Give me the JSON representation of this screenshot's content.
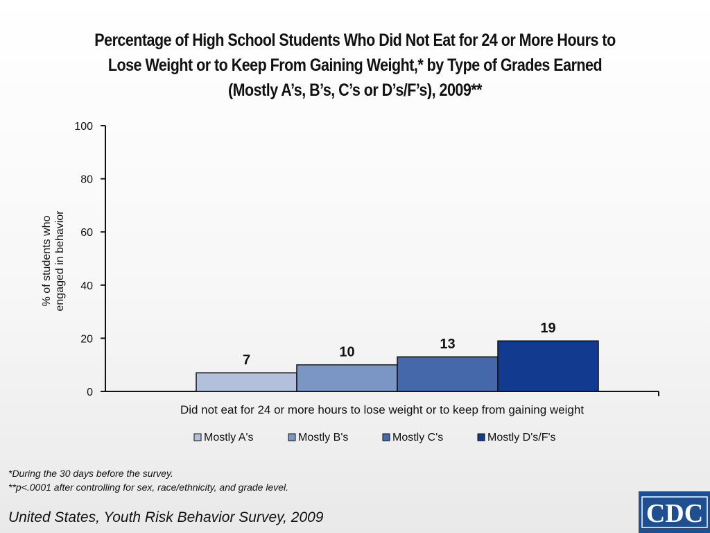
{
  "title_lines": [
    "Percentage of High School Students Who Did Not Eat for 24 or More Hours to",
    "Lose Weight or to Keep From Gaining Weight,* by Type of Grades Earned",
    "(Mostly A’s, B’s, C’s or D’s/F’s), 2009**"
  ],
  "footnotes": {
    "fn1": "*During the 30 days before the survey.",
    "fn2": "**p<.0001 after controlling for sex, race/ethnicity, and grade level."
  },
  "source": "United States, Youth Risk Behavior Survey, 2009",
  "logo_text": "CDC",
  "colors": {
    "logo_bg": "#1d4f91",
    "bar_outline": "#111111"
  },
  "chart_data": {
    "type": "bar",
    "title": "Percentage of High School Students Who Did Not Eat for 24 or More Hours to Lose Weight or to Keep From Gaining Weight,* by Type of Grades Earned (Mostly A’s, B’s, C’s or D’s/F’s), 2009**",
    "categories": [
      "Did not eat for 24 or more hours to lose weight or to keep from gaining weight"
    ],
    "xlabel": "Did not eat for 24 or more hours to lose weight or to keep from gaining weight",
    "ylabel_lines": [
      "% of students who",
      "engaged in behavior"
    ],
    "ylim": [
      0,
      100
    ],
    "yticks": [
      0,
      20,
      40,
      60,
      80,
      100
    ],
    "grid": false,
    "legend_position": "bottom",
    "series": [
      {
        "name": "Mostly A's",
        "values": [
          7
        ],
        "color": "#b3c0dc",
        "label": "7"
      },
      {
        "name": "Mostly B's",
        "values": [
          10
        ],
        "color": "#7b96c4",
        "label": "10"
      },
      {
        "name": "Mostly C's",
        "values": [
          13
        ],
        "color": "#4468a9",
        "label": "13"
      },
      {
        "name": "Mostly D's/F's",
        "values": [
          19
        ],
        "color": "#123a8f",
        "label": "19"
      }
    ]
  }
}
